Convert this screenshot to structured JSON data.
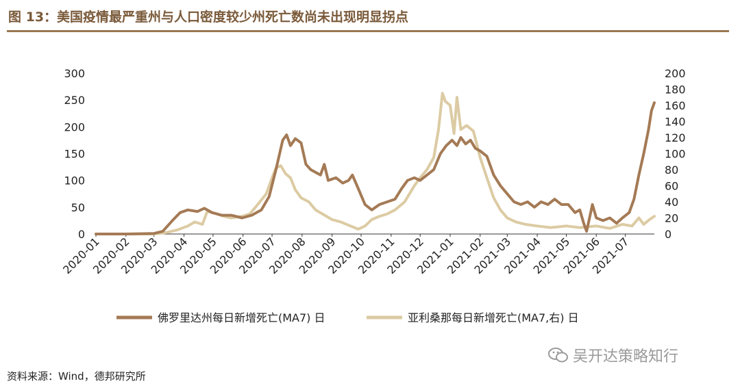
{
  "header": {
    "title": "图 13：美国疫情最严重州与人口密度较少州死亡数尚未出现明显拐点"
  },
  "footer": {
    "source": "资料来源：Wind，德邦研究所"
  },
  "watermark": {
    "text": "吴开达策略知行",
    "icon": "wechat-icon"
  },
  "colors": {
    "series1": "#a47a55",
    "series2": "#dccba3",
    "title": "#7a5a3a",
    "rule": "#9a7650"
  },
  "chart_data": {
    "type": "line",
    "title": "",
    "y_left": {
      "ylim": [
        0,
        300
      ],
      "ticks": [
        "300",
        "250",
        "200",
        "150",
        "100",
        "50",
        "0"
      ]
    },
    "y_right": {
      "ylim": [
        0,
        200
      ],
      "ticks": [
        "200",
        "180",
        "160",
        "140",
        "120",
        "100",
        "80",
        "60",
        "40",
        "20",
        "0"
      ]
    },
    "x_ticks": [
      "2020-01",
      "2020-02",
      "2020-03",
      "2020-04",
      "2020-05",
      "2020-06",
      "2020-07",
      "2020-08",
      "2020-09",
      "2020-10",
      "2020-11",
      "2020-12",
      "2021-01",
      "2021-02",
      "2021-03",
      "2021-04",
      "2021-05",
      "2021-06",
      "2021-07"
    ],
    "x_range": [
      "2020-01-01",
      "2021-07-31"
    ],
    "legend_position": "bottom",
    "series": [
      {
        "name": "佛罗里达州每日新增死亡(MA7) 日",
        "axis": "left",
        "points": [
          [
            "2020-01-01",
            0
          ],
          [
            "2020-02-01",
            0
          ],
          [
            "2020-03-01",
            1
          ],
          [
            "2020-03-10",
            5
          ],
          [
            "2020-03-20",
            25
          ],
          [
            "2020-03-28",
            40
          ],
          [
            "2020-04-05",
            45
          ],
          [
            "2020-04-15",
            42
          ],
          [
            "2020-04-22",
            48
          ],
          [
            "2020-04-30",
            40
          ],
          [
            "2020-05-10",
            35
          ],
          [
            "2020-05-20",
            35
          ],
          [
            "2020-05-31",
            30
          ],
          [
            "2020-06-10",
            35
          ],
          [
            "2020-06-20",
            45
          ],
          [
            "2020-06-28",
            70
          ],
          [
            "2020-07-05",
            120
          ],
          [
            "2020-07-12",
            175
          ],
          [
            "2020-07-16",
            185
          ],
          [
            "2020-07-20",
            165
          ],
          [
            "2020-07-25",
            178
          ],
          [
            "2020-07-31",
            170
          ],
          [
            "2020-08-05",
            130
          ],
          [
            "2020-08-10",
            120
          ],
          [
            "2020-08-15",
            115
          ],
          [
            "2020-08-20",
            110
          ],
          [
            "2020-08-24",
            130
          ],
          [
            "2020-08-28",
            100
          ],
          [
            "2020-09-05",
            105
          ],
          [
            "2020-09-12",
            95
          ],
          [
            "2020-09-18",
            100
          ],
          [
            "2020-09-22",
            110
          ],
          [
            "2020-09-28",
            85
          ],
          [
            "2020-10-05",
            55
          ],
          [
            "2020-10-12",
            45
          ],
          [
            "2020-10-20",
            55
          ],
          [
            "2020-10-28",
            60
          ],
          [
            "2020-11-05",
            65
          ],
          [
            "2020-11-12",
            85
          ],
          [
            "2020-11-18",
            100
          ],
          [
            "2020-11-25",
            105
          ],
          [
            "2020-12-01",
            100
          ],
          [
            "2020-12-08",
            110
          ],
          [
            "2020-12-15",
            120
          ],
          [
            "2020-12-22",
            150
          ],
          [
            "2020-12-28",
            165
          ],
          [
            "2021-01-03",
            175
          ],
          [
            "2021-01-08",
            165
          ],
          [
            "2021-01-12",
            180
          ],
          [
            "2021-01-17",
            168
          ],
          [
            "2021-01-22",
            175
          ],
          [
            "2021-01-27",
            160
          ],
          [
            "2021-02-01",
            155
          ],
          [
            "2021-02-08",
            145
          ],
          [
            "2021-02-15",
            110
          ],
          [
            "2021-02-22",
            90
          ],
          [
            "2021-03-01",
            75
          ],
          [
            "2021-03-08",
            60
          ],
          [
            "2021-03-15",
            55
          ],
          [
            "2021-03-22",
            60
          ],
          [
            "2021-03-29",
            50
          ],
          [
            "2021-04-05",
            60
          ],
          [
            "2021-04-12",
            55
          ],
          [
            "2021-04-19",
            65
          ],
          [
            "2021-04-26",
            55
          ],
          [
            "2021-05-03",
            55
          ],
          [
            "2021-05-10",
            40
          ],
          [
            "2021-05-15",
            45
          ],
          [
            "2021-05-19",
            20
          ],
          [
            "2021-05-22",
            5
          ],
          [
            "2021-05-25",
            30
          ],
          [
            "2021-05-28",
            55
          ],
          [
            "2021-06-01",
            30
          ],
          [
            "2021-06-08",
            25
          ],
          [
            "2021-06-15",
            30
          ],
          [
            "2021-06-22",
            20
          ],
          [
            "2021-06-28",
            30
          ],
          [
            "2021-07-05",
            40
          ],
          [
            "2021-07-10",
            65
          ],
          [
            "2021-07-15",
            110
          ],
          [
            "2021-07-20",
            150
          ],
          [
            "2021-07-25",
            195
          ],
          [
            "2021-07-28",
            230
          ],
          [
            "2021-07-31",
            245
          ]
        ]
      },
      {
        "name": "亚利桑那每日新增死亡(MA7,右) 日",
        "axis": "right",
        "points": [
          [
            "2020-01-01",
            0
          ],
          [
            "2020-02-01",
            0
          ],
          [
            "2020-03-01",
            0
          ],
          [
            "2020-03-15",
            2
          ],
          [
            "2020-03-25",
            5
          ],
          [
            "2020-04-05",
            10
          ],
          [
            "2020-04-12",
            15
          ],
          [
            "2020-04-20",
            12
          ],
          [
            "2020-04-25",
            28
          ],
          [
            "2020-05-05",
            25
          ],
          [
            "2020-05-12",
            22
          ],
          [
            "2020-05-20",
            20
          ],
          [
            "2020-05-31",
            22
          ],
          [
            "2020-06-08",
            25
          ],
          [
            "2020-06-15",
            35
          ],
          [
            "2020-06-25",
            50
          ],
          [
            "2020-07-01",
            70
          ],
          [
            "2020-07-05",
            82
          ],
          [
            "2020-07-10",
            85
          ],
          [
            "2020-07-15",
            75
          ],
          [
            "2020-07-20",
            70
          ],
          [
            "2020-07-25",
            55
          ],
          [
            "2020-07-31",
            45
          ],
          [
            "2020-08-08",
            40
          ],
          [
            "2020-08-15",
            30
          ],
          [
            "2020-08-22",
            25
          ],
          [
            "2020-09-01",
            18
          ],
          [
            "2020-09-10",
            15
          ],
          [
            "2020-09-20",
            10
          ],
          [
            "2020-09-28",
            6
          ],
          [
            "2020-10-05",
            10
          ],
          [
            "2020-10-12",
            18
          ],
          [
            "2020-10-20",
            22
          ],
          [
            "2020-10-28",
            25
          ],
          [
            "2020-11-05",
            30
          ],
          [
            "2020-11-15",
            40
          ],
          [
            "2020-11-25",
            60
          ],
          [
            "2020-12-01",
            70
          ],
          [
            "2020-12-08",
            80
          ],
          [
            "2020-12-15",
            95
          ],
          [
            "2020-12-20",
            130
          ],
          [
            "2020-12-24",
            175
          ],
          [
            "2020-12-27",
            165
          ],
          [
            "2021-01-01",
            160
          ],
          [
            "2021-01-05",
            125
          ],
          [
            "2021-01-08",
            170
          ],
          [
            "2021-01-12",
            130
          ],
          [
            "2021-01-18",
            135
          ],
          [
            "2021-01-25",
            128
          ],
          [
            "2021-02-01",
            95
          ],
          [
            "2021-02-08",
            70
          ],
          [
            "2021-02-15",
            45
          ],
          [
            "2021-02-22",
            30
          ],
          [
            "2021-03-01",
            20
          ],
          [
            "2021-03-10",
            15
          ],
          [
            "2021-03-20",
            12
          ],
          [
            "2021-04-01",
            10
          ],
          [
            "2021-04-15",
            8
          ],
          [
            "2021-05-01",
            10
          ],
          [
            "2021-05-15",
            8
          ],
          [
            "2021-06-01",
            10
          ],
          [
            "2021-06-15",
            7
          ],
          [
            "2021-06-28",
            12
          ],
          [
            "2021-07-08",
            10
          ],
          [
            "2021-07-15",
            20
          ],
          [
            "2021-07-20",
            12
          ],
          [
            "2021-07-26",
            18
          ],
          [
            "2021-07-31",
            22
          ]
        ]
      }
    ]
  }
}
